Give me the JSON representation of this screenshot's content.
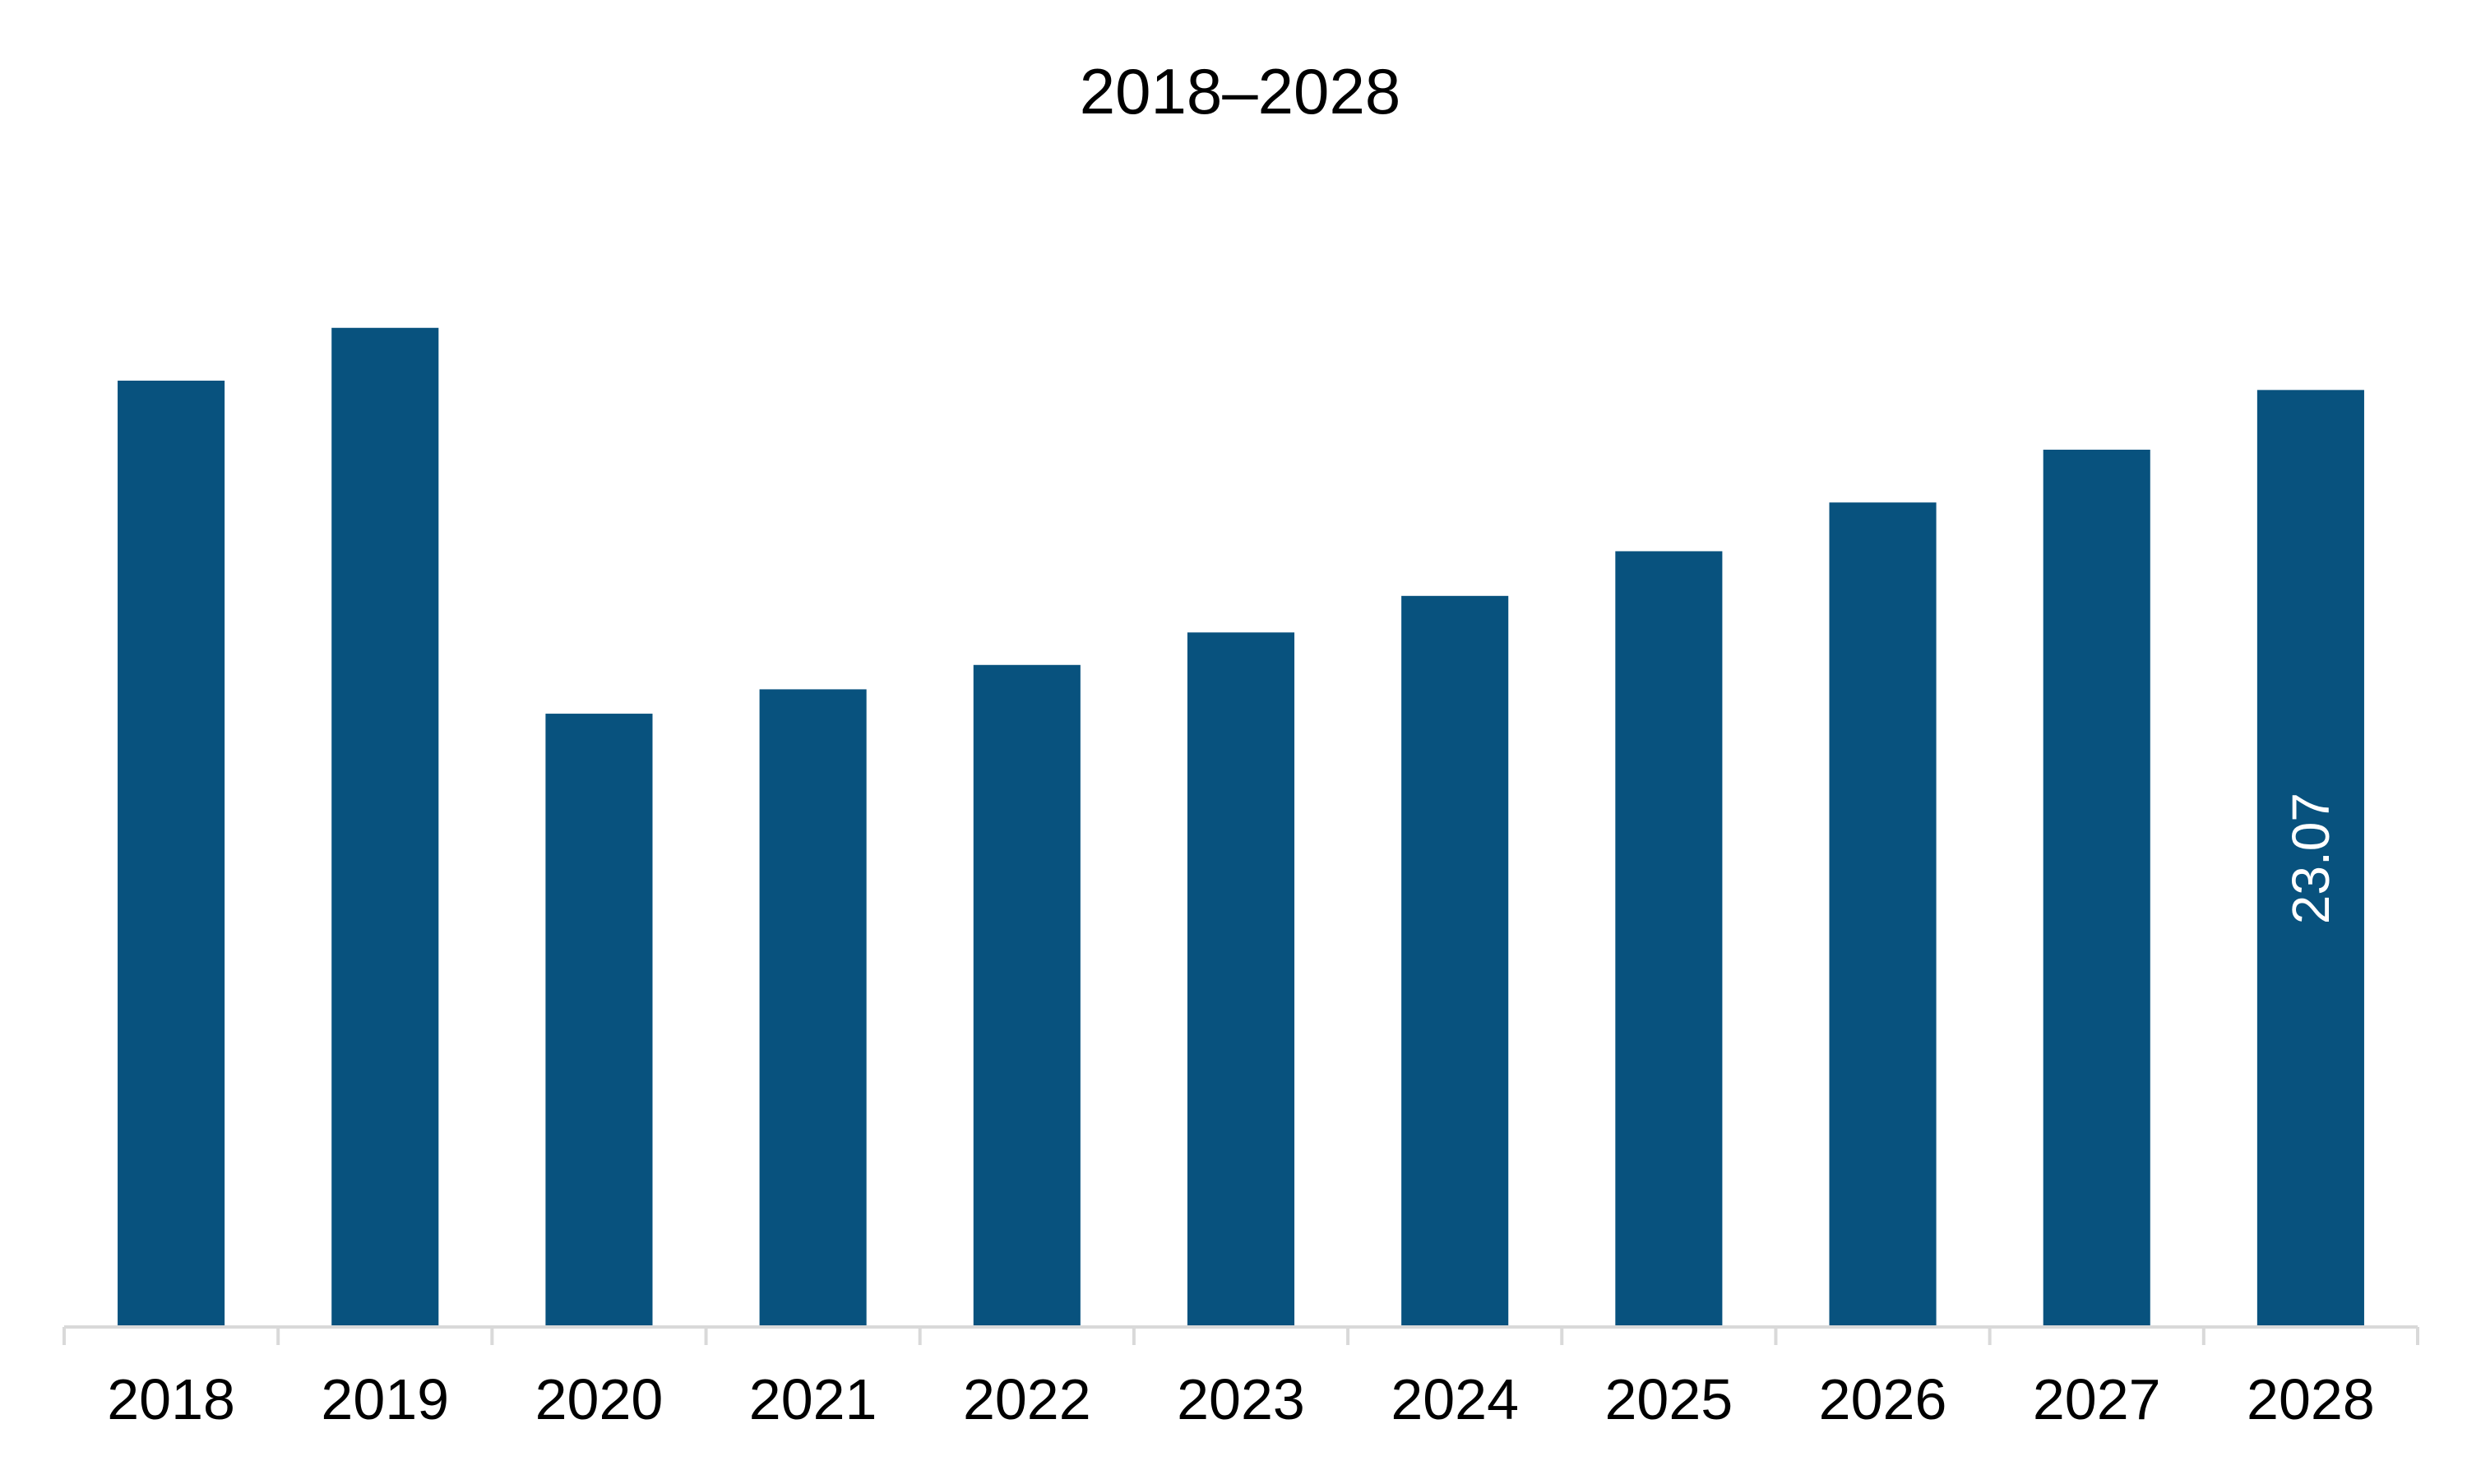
{
  "chart_data": {
    "type": "bar",
    "title": "2018–2028",
    "xlabel": "",
    "ylabel": "",
    "categories": [
      "2018",
      "2019",
      "2020",
      "2021",
      "2022",
      "2023",
      "2024",
      "2025",
      "2026",
      "2027",
      "2028"
    ],
    "values": [
      23.3,
      24.6,
      15.1,
      15.7,
      16.3,
      17.1,
      18.0,
      19.1,
      20.3,
      21.6,
      23.07
    ],
    "data_labels": [
      {
        "category": "2028",
        "text": "23.07",
        "orientation": "vertical"
      }
    ],
    "ylim": [
      0,
      25
    ],
    "y_axis_visible": false,
    "grid": false,
    "legend": "none",
    "colors": {
      "bar": "#08527E",
      "axis": "#D9D9D9",
      "text": "#000000",
      "data_label": "#FFFFFF"
    }
  }
}
